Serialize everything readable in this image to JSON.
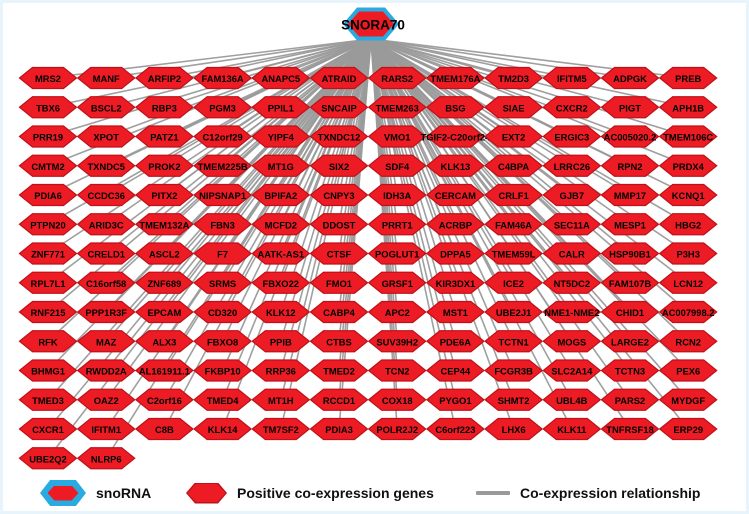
{
  "network": {
    "hub_label": "SNORA70",
    "rows": [
      [
        "MRS2",
        "MANF",
        "ARFIP2",
        "FAM136A",
        "ANAPC5",
        "ATRAID",
        "RARS2",
        "TMEM176A",
        "TM2D3",
        "IFITM5",
        "ADPGK",
        "PREB"
      ],
      [
        "TBX6",
        "BSCL2",
        "RBP3",
        "PGM3",
        "PPIL1",
        "SNCAIP",
        "TMEM263",
        "BSG",
        "SIAE",
        "CXCR2",
        "PIGT",
        "APH1B"
      ],
      [
        "PRR19",
        "XPOT",
        "PATZ1",
        "C12orf29",
        "YIPF4",
        "TXNDC12",
        "VMO1",
        "TGIF2-C20orf24",
        "EXT2",
        "ERGIC3",
        "AC005020.2",
        "TMEM106C"
      ],
      [
        "CMTM2",
        "TXNDC5",
        "PROK2",
        "TMEM225B",
        "MT1G",
        "SIX2",
        "SDF4",
        "KLK13",
        "C4BPA",
        "LRRC26",
        "RPN2",
        "PRDX4"
      ],
      [
        "PDIA6",
        "CCDC36",
        "PITX2",
        "NIPSNAP1",
        "BPIFA2",
        "CNPY3",
        "IDH3A",
        "CERCAM",
        "CRLF1",
        "GJB7",
        "MMP17",
        "KCNQ1"
      ],
      [
        "PTPN20",
        "ARID3C",
        "TMEM132A",
        "FBN3",
        "MCFD2",
        "DDOST",
        "PRRT1",
        "ACRBP",
        "FAM46A",
        "SEC11A",
        "MESP1",
        "HBG2"
      ],
      [
        "ZNF771",
        "CRELD1",
        "ASCL2",
        "F7",
        "AATK-AS1",
        "CTSF",
        "POGLUT1",
        "DPPA5",
        "TMEM59L",
        "CALR",
        "HSP90B1",
        "P3H3"
      ],
      [
        "RPL7L1",
        "C16orf58",
        "ZNF689",
        "SRMS",
        "FBXO22",
        "FMO1",
        "GRSF1",
        "KIR3DX1",
        "ICE2",
        "NT5DC2",
        "FAM107B",
        "LCN12"
      ],
      [
        "RNF215",
        "PPP1R3F",
        "EPCAM",
        "CD320",
        "KLK12",
        "CABP4",
        "APC2",
        "MST1",
        "UBE2J1",
        "NME1-NME2",
        "CHID1",
        "AC007998.2"
      ],
      [
        "RFK",
        "MAZ",
        "ALX3",
        "FBXO8",
        "PPIB",
        "CTBS",
        "SUV39H2",
        "PDE6A",
        "TCTN1",
        "MOGS",
        "LARGE2",
        "RCN2"
      ],
      [
        "BHMG1",
        "RWDD2A",
        "AL161911.1",
        "FKBP10",
        "RRP36",
        "TMED2",
        "TCN2",
        "CEP44",
        "FCGR3B",
        "SLC2A14",
        "TCTN3",
        "PEX6"
      ],
      [
        "TMED3",
        "OAZ2",
        "C2orf16",
        "TMED4",
        "MT1H",
        "RCCD1",
        "COX18",
        "PYGO1",
        "SHMT2",
        "UBL4B",
        "PARS2",
        "MYDGF"
      ],
      [
        "CXCR1",
        "IFITM1",
        "C8B",
        "KLK14",
        "TM7SF2",
        "PDIA3",
        "POLR2J2",
        "C6orf223",
        "LHX6",
        "KLK11",
        "TNFRSF18",
        "ERP29"
      ],
      [
        "UBE2Q2",
        "NLRP6"
      ]
    ]
  },
  "legend": {
    "snorna": "snoRNA",
    "positive": "Positive co-expression genes",
    "relationship": "Co-expression relationship"
  },
  "colors": {
    "node_fill": "#ED1C24",
    "node_stroke": "#C01018",
    "snorna_border": "#29ABE2",
    "edge": "#9A9A9A"
  }
}
